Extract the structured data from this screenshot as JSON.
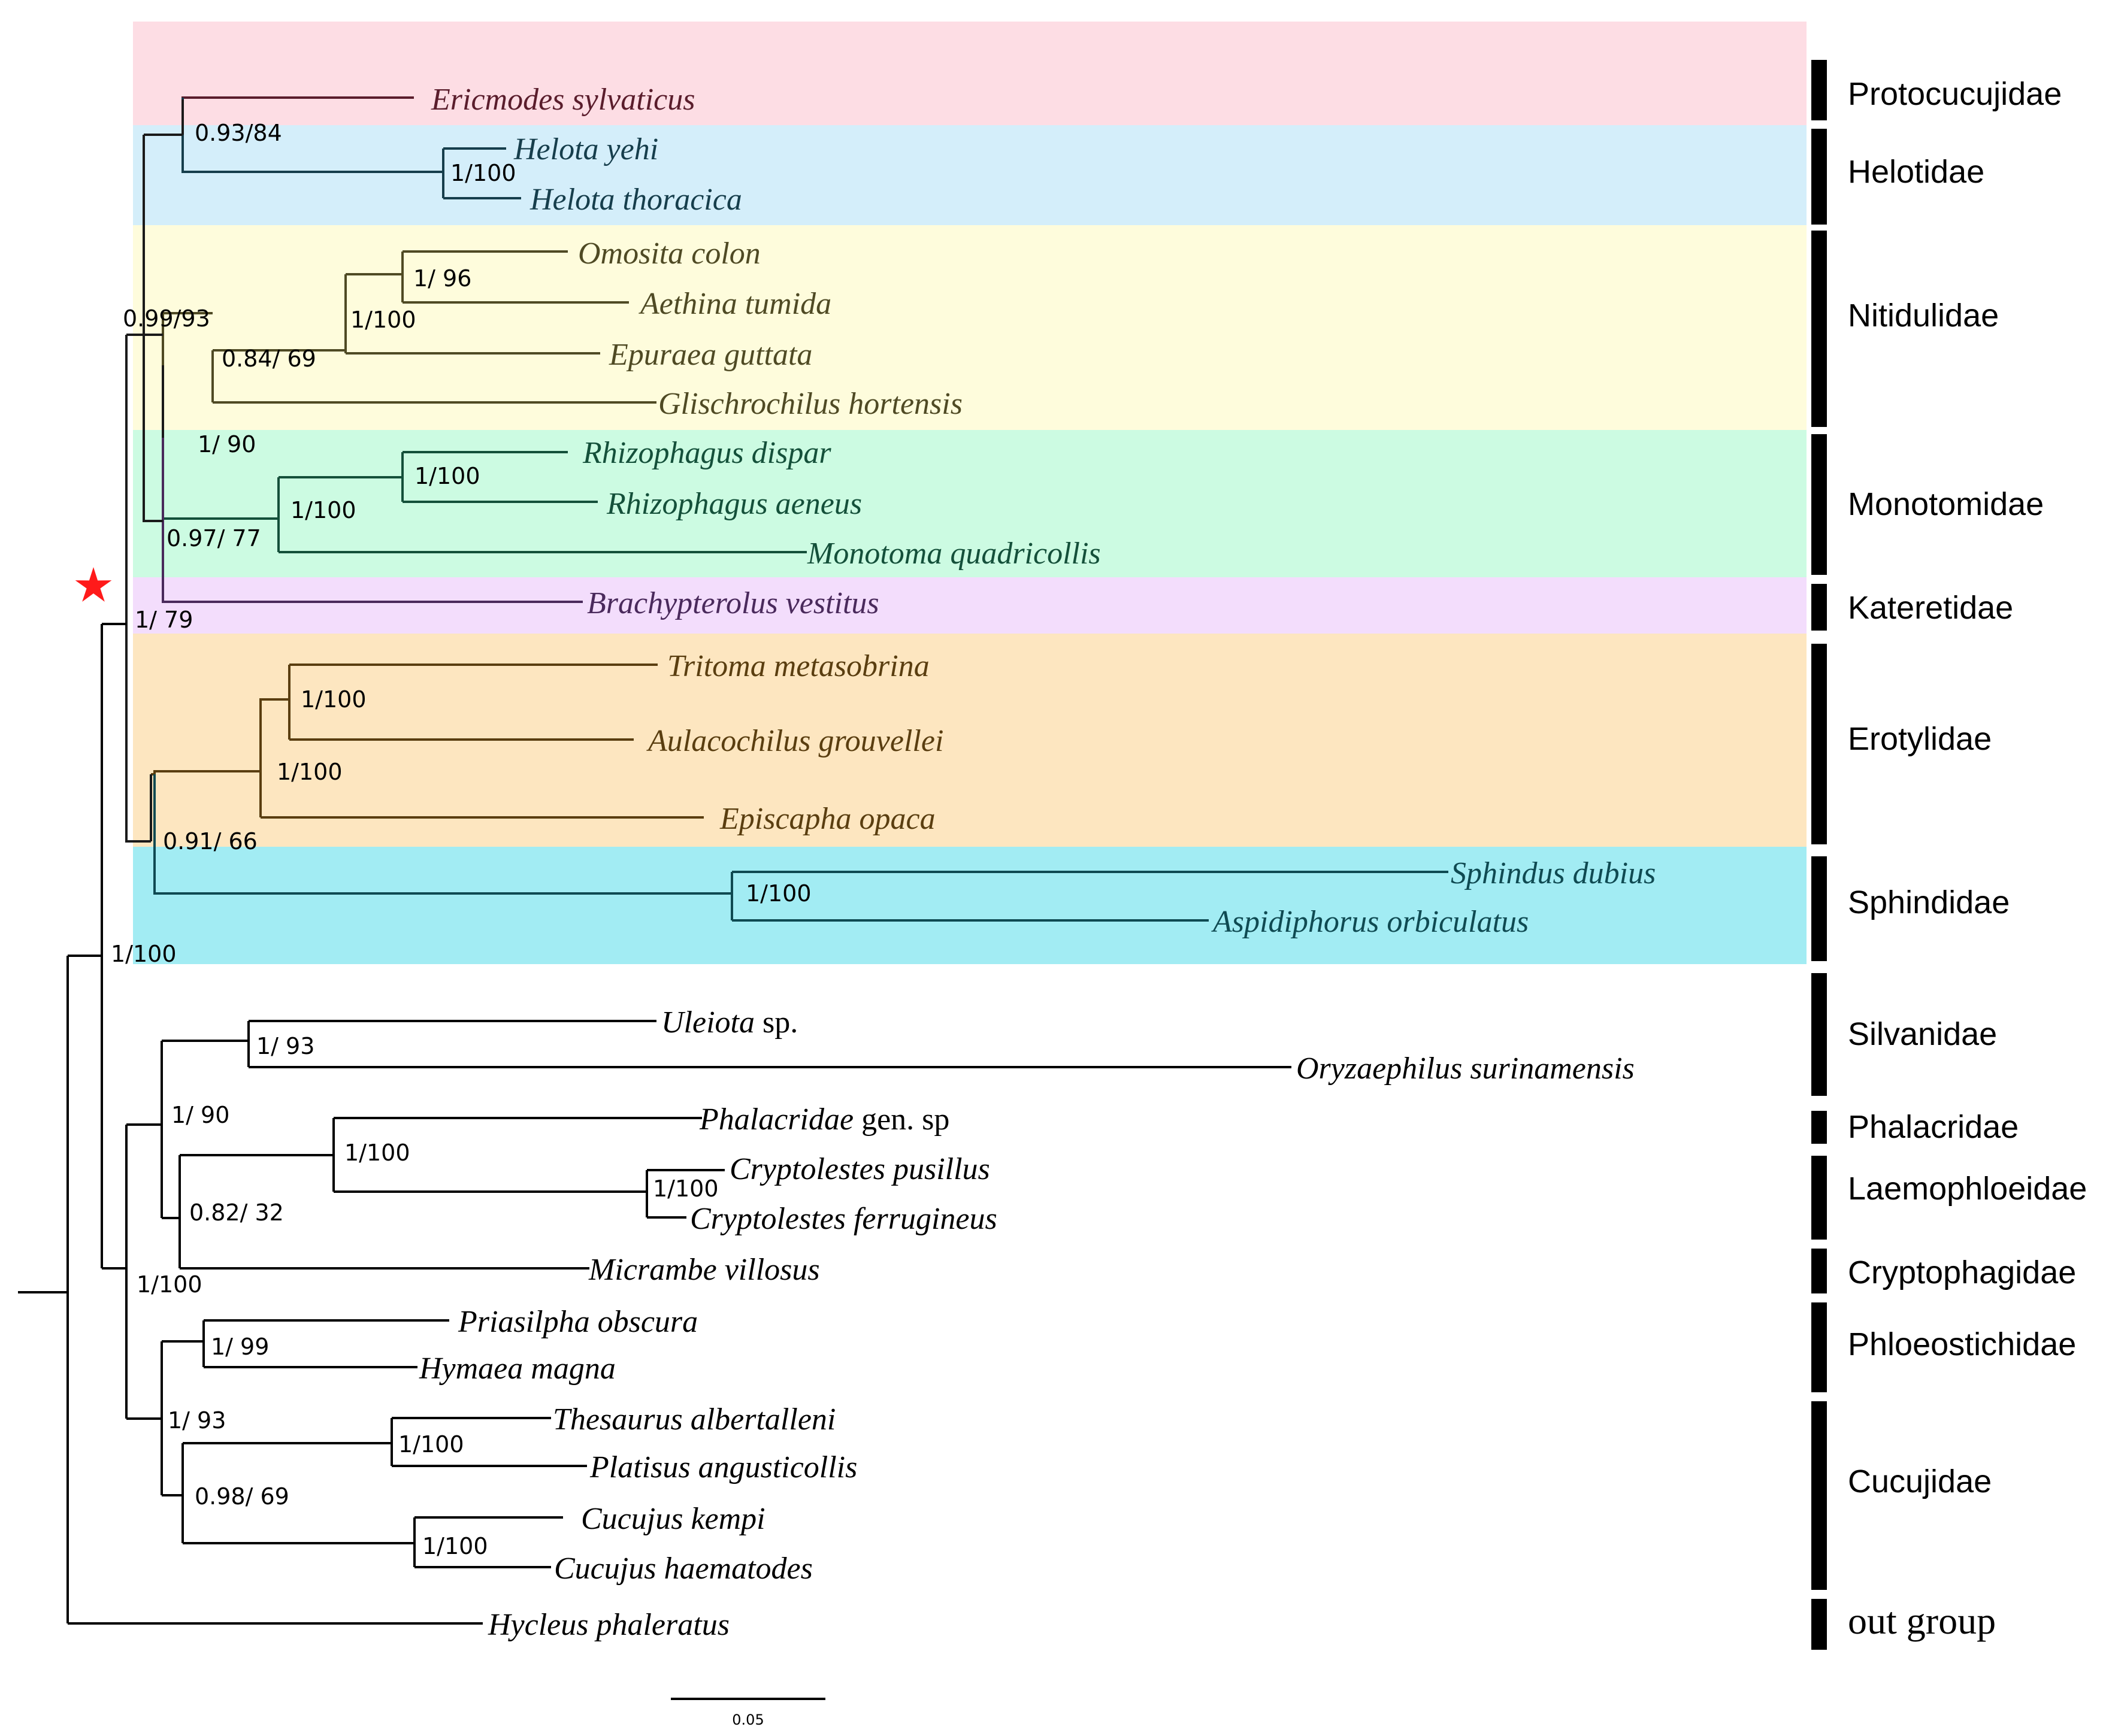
{
  "taxa": {
    "ericmodes": "Ericmodes sylvaticus",
    "helota_yehi": "Helota yehi",
    "helota_thoracica": "Helota thoracica",
    "omosita": "Omosita colon",
    "aethina": "Aethina tumida",
    "epuraea": "Epuraea guttata",
    "glischrochilus": "Glischrochilus hortensis",
    "rhizo_dispar": "Rhizophagus dispar",
    "rhizo_aeneus": "Rhizophagus aeneus",
    "monotoma": "Monotoma quadricollis",
    "brachypterolus": "Brachypterolus vestitus",
    "tritoma": "Tritoma metasobrina",
    "aulacochilus": "Aulacochilus grouvellei",
    "episcapha": "Episcapha opaca",
    "sphindus": "Sphindus dubius",
    "aspidiphorus": "Aspidiphorus orbiculatus",
    "uleiota": "Uleiota",
    "uleiota_suffix": " sp.",
    "oryzaephilus": "Oryzaephilus surinamensis",
    "phalacridae": "Phalacridae",
    "phalacridae_suffix": " gen. sp",
    "crypto_pusillus": "Cryptolestes pusillus",
    "crypto_ferrugineus": "Cryptolestes ferrugineus",
    "micrambe": "Micrambe villosus",
    "priasilpha": "Priasilpha obscura",
    "hymaea": "Hymaea magna",
    "thesaurus": "Thesaurus albertalleni",
    "platisus": "Platisus angusticollis",
    "cucujus_kempi": "Cucujus kempi",
    "cucujus_haem": "Cucujus haematodes",
    "hycleus": "Hycleus phaleratus"
  },
  "supports": {
    "n_prot_helot": "0.93/84",
    "n_helota": "1/100",
    "n_omo_aet": "1/ 96",
    "n_omo_epu": "1/100",
    "n_nitid": "0.84/ 69",
    "n_nitid_mono": "1/ 90",
    "n_upper": "0.99/93",
    "n_rhizo": "1/100",
    "n_mono": "1/100",
    "n_with_kater": "0.97/ 77",
    "n_a_clade": "1/ 79",
    "n_trit_aul": "1/100",
    "n_erot": "1/100",
    "n_erot_sphin": "0.91/ 66",
    "n_sphin": "1/100",
    "n_ingroup": "1/100",
    "n_silv": "1/ 93",
    "n_b_upper": "1/ 90",
    "n_phal_laem": "1/100",
    "n_crypto": "1/100",
    "n_b_mid": "0.82/ 32",
    "n_b_clade": "1/100",
    "n_phloeo": "1/ 99",
    "n_b_lower": "1/ 93",
    "n_cucujidae": "0.98/ 69",
    "n_thes_plat": "1/100",
    "n_cucujus": "1/100"
  },
  "families": {
    "protocucujidae": "Protocucujidae",
    "helotidae": "Helotidae",
    "nitidulidae": "Nitidulidae",
    "monotomidae": "Monotomidae",
    "kateretidae": "Kateretidae",
    "erotylidae": "Erotylidae",
    "sphindidae": "Sphindidae",
    "silvanidae": "Silvanidae",
    "phalacridae": "Phalacridae",
    "laemophloeidae": "Laemophloeidae",
    "cryptophagidae": "Cryptophagidae",
    "phloeostichidae": "Phloeostichidae",
    "cucujidae": "Cucujidae",
    "outgroup": "out group"
  },
  "scale_bar_label": "0.05",
  "colors": {
    "protocucujidae_band": "#fddde4",
    "helotidae_band": "#d4eefa",
    "nitidulidae_band": "#fefcdc",
    "monotomidae_band": "#ccfbe2",
    "kateretidae_band": "#f3ddfc",
    "erotylidae_band": "#fde6c0",
    "sphindidae_band": "#a2ecf3",
    "protocucujidae_text": "#5a1d2c",
    "helotidae_text": "#163e4c",
    "nitidulidae_text": "#4f4a24",
    "monotomidae_text": "#14503a",
    "kateretidae_text": "#4a2a5c",
    "erotylidae_text": "#5a3e10",
    "sphindidae_text": "#0f4a52",
    "black": "#000000",
    "star": "#ff1a1a"
  }
}
